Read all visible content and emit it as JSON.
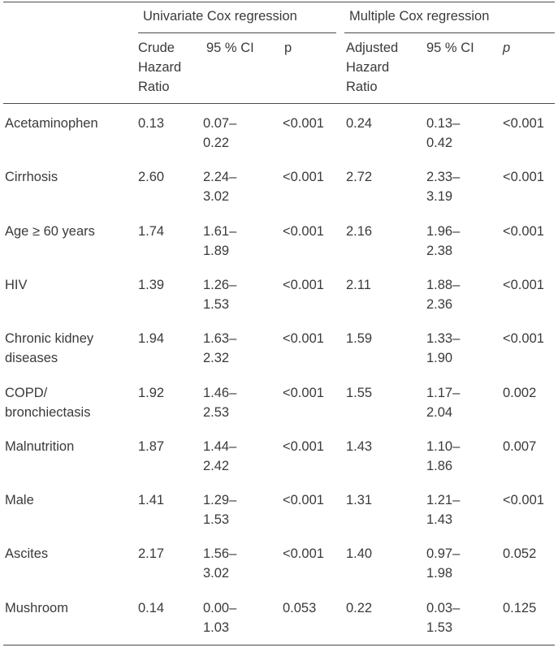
{
  "header": {
    "group_univariate": "Univariate Cox regression",
    "group_multiple": "Multiple Cox regression",
    "crude_hr": [
      "Crude",
      "Hazard",
      "Ratio"
    ],
    "ci_uni": "95 % CI",
    "p_uni": "p",
    "adjusted_hr": [
      "Adjusted",
      "Hazard",
      "Ratio"
    ],
    "ci_multi": "95 % CI",
    "p_multi": "p"
  },
  "rows": [
    {
      "label": "Acetaminophen",
      "crude_hr": "0.13",
      "uni_ci": [
        "0.07–",
        "0.22"
      ],
      "uni_p": "<0.001",
      "adj_hr": "0.24",
      "multi_ci": [
        "0.13–",
        "0.42"
      ],
      "multi_p": "<0.001"
    },
    {
      "label": "Cirrhosis",
      "crude_hr": "2.60",
      "uni_ci": [
        "2.24–",
        "3.02"
      ],
      "uni_p": "<0.001",
      "adj_hr": "2.72",
      "multi_ci": [
        "2.33–",
        "3.19"
      ],
      "multi_p": "<0.001"
    },
    {
      "label": "Age ≥ 60 years",
      "crude_hr": "1.74",
      "uni_ci": [
        "1.61–",
        "1.89"
      ],
      "uni_p": "<0.001",
      "adj_hr": "2.16",
      "multi_ci": [
        "1.96–",
        "2.38"
      ],
      "multi_p": "<0.001"
    },
    {
      "label": "HIV",
      "crude_hr": "1.39",
      "uni_ci": [
        "1.26–",
        "1.53"
      ],
      "uni_p": "<0.001",
      "adj_hr": "2.11",
      "multi_ci": [
        "1.88–",
        "2.36"
      ],
      "multi_p": "<0.001"
    },
    {
      "label": "Chronic kidney diseases",
      "crude_hr": "1.94",
      "uni_ci": [
        "1.63–",
        "2.32"
      ],
      "uni_p": "<0.001",
      "adj_hr": "1.59",
      "multi_ci": [
        "1.33–",
        "1.90"
      ],
      "multi_p": "<0.001"
    },
    {
      "label": "COPD/ bronchiectasis",
      "crude_hr": "1.92",
      "uni_ci": [
        "1.46–",
        "2.53"
      ],
      "uni_p": "<0.001",
      "adj_hr": "1.55",
      "multi_ci": [
        "1.17–",
        "2.04"
      ],
      "multi_p": "0.002"
    },
    {
      "label": "Malnutrition",
      "crude_hr": "1.87",
      "uni_ci": [
        "1.44–",
        "2.42"
      ],
      "uni_p": "<0.001",
      "adj_hr": "1.43",
      "multi_ci": [
        "1.10–",
        "1.86"
      ],
      "multi_p": "0.007"
    },
    {
      "label": "Male",
      "crude_hr": "1.41",
      "uni_ci": [
        "1.29–",
        "1.53"
      ],
      "uni_p": "<0.001",
      "adj_hr": "1.31",
      "multi_ci": [
        "1.21–",
        "1.43"
      ],
      "multi_p": "<0.001"
    },
    {
      "label": "Ascites",
      "crude_hr": "2.17",
      "uni_ci": [
        "1.56–",
        "3.02"
      ],
      "uni_p": "<0.001",
      "adj_hr": "1.40",
      "multi_ci": [
        "0.97–",
        "1.98"
      ],
      "multi_p": "0.052"
    },
    {
      "label": "Mushroom",
      "crude_hr": "0.14",
      "uni_ci": [
        "0.00–",
        "1.03"
      ],
      "uni_p": "0.053",
      "adj_hr": "0.22",
      "multi_ci": [
        "0.03–",
        "1.53"
      ],
      "multi_p": "0.125"
    }
  ]
}
